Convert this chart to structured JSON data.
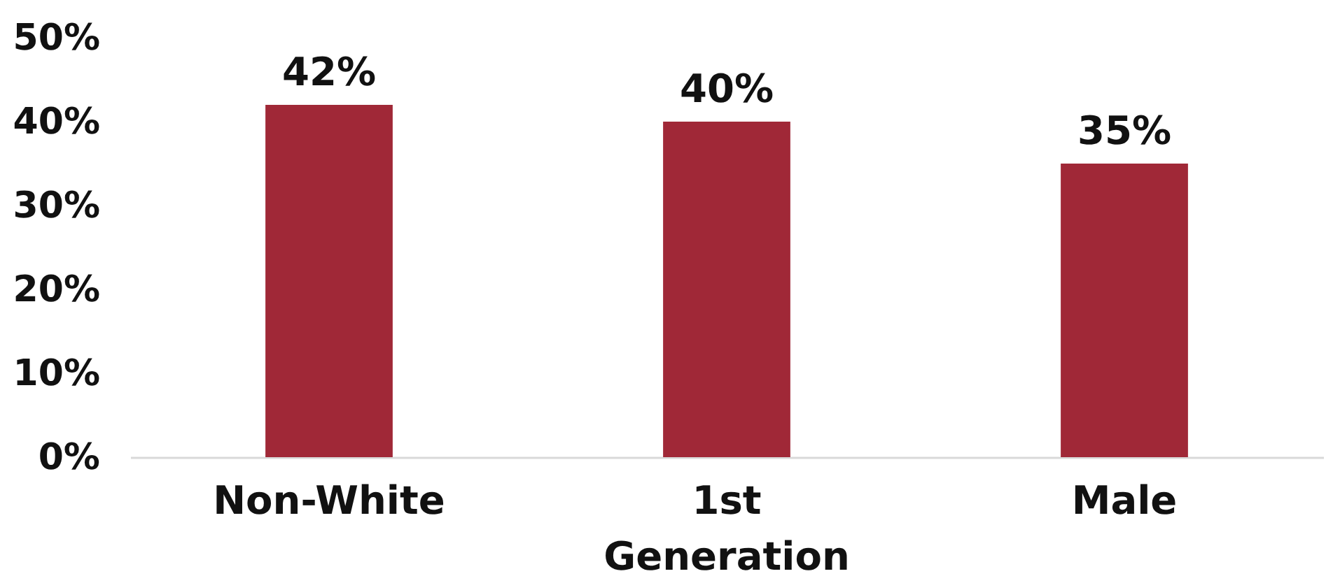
{
  "chart_data": {
    "type": "bar",
    "categories": [
      "Non-White",
      "1st Generation",
      "Male"
    ],
    "values": [
      42,
      40,
      35
    ],
    "color": "#a02837",
    "value_labels": [
      "42%",
      "40%",
      "35%"
    ],
    "ylim": [
      0,
      50
    ],
    "yticks": [
      {
        "value": 0,
        "label": "0%"
      },
      {
        "value": 10,
        "label": "10%"
      },
      {
        "value": 20,
        "label": "20%"
      },
      {
        "value": 30,
        "label": "30%"
      },
      {
        "value": 40,
        "label": "40%"
      },
      {
        "value": 50,
        "label": "50%"
      }
    ],
    "grid": false
  }
}
